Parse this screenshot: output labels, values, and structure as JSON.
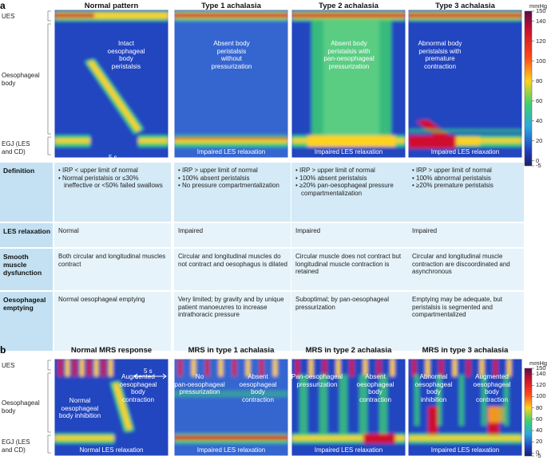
{
  "panel_a": {
    "label": "a",
    "columns": [
      {
        "title": "Normal pattern",
        "annotation": [
          "Intact",
          "oesophageal",
          "body",
          "peristalsis"
        ]
      },
      {
        "title": "Type 1 achalasia",
        "annotation": [
          "Absent body",
          "peristalsis",
          "without",
          "pressurization"
        ],
        "bottom": "Impaired LES relaxation"
      },
      {
        "title": "Type 2 achalasia",
        "annotation": [
          "Absent body",
          "peristalsis  with",
          "pan-oesophageal",
          "pressurization"
        ],
        "bottom": "Impaired LES relaxation"
      },
      {
        "title": "Type 3 achalasia",
        "annotation": [
          "Abnormal body",
          "peristalsis with",
          "premature",
          "contraction"
        ],
        "bottom": "Impaired LES relaxation"
      }
    ],
    "scale_bar": "5 s",
    "regions": {
      "ues": "UES",
      "body": [
        "Oesophageal",
        "body"
      ],
      "egj": [
        "EGJ (LES",
        "and CD)"
      ]
    },
    "colorbar": {
      "unit": "mmHg",
      "ticks": [
        150,
        140,
        120,
        100,
        80,
        60,
        40,
        20,
        0,
        -5
      ]
    }
  },
  "table": {
    "rows": [
      {
        "header": "Definition",
        "cells": [
          [
            "IRP < upper limit of normal",
            "Normal peristalsis or ≤30% ineffective or <50% failed swallows"
          ],
          [
            "IRP > upper limit of normal",
            "100% absent peristalsis",
            "No pressure compartmentalization"
          ],
          [
            "IRP > upper limit of normal",
            "100% absent peristalsis",
            "≥20% pan-oesophageal pressure compartmentalization"
          ],
          [
            "IRP > upper limit of normal",
            "100% abnormal peristalsis",
            "≥20% premature peristalsis"
          ]
        ]
      },
      {
        "header": "LES relaxation",
        "cells": [
          "Normal",
          "Impaired",
          "Impaired",
          "Impaired"
        ]
      },
      {
        "header": "Smooth muscle dysfunction",
        "cells": [
          "Both circular and longitudinal muscles contract",
          "Circular and longitudinal muscles do not contract and oesophagus is dilated",
          "Circular muscle does not contract but longitudinal muscle contraction is retained",
          "Circular and longitudinal muscle contraction are discoordinated and asynchronous"
        ]
      },
      {
        "header": "Oesophageal emptying",
        "cells": [
          "Normal oesophageal emptying",
          "Very limited; by gravity and by unique patient manoeuvres to increase intrathoracic pressure",
          "Suboptimal; by pan-oesophageal pressurization",
          "Emptying may be adequate, but peristalsis is segmented and compartmentalized"
        ]
      }
    ]
  },
  "panel_b": {
    "label": "b",
    "columns": [
      {
        "title": "Normal MRS response",
        "annotations": [
          [
            "Normal",
            "oesophageal",
            "body inhibition"
          ],
          [
            "Augmented",
            "oesophageal",
            "body",
            "contraction"
          ]
        ],
        "bottom": "Normal LES relaxation"
      },
      {
        "title": "MRS in type 1 achalasia",
        "annotations": [
          [
            "No",
            "pan-oesophageal",
            "pressurization"
          ],
          [
            "Absent",
            "oesophageal",
            "body",
            "contraction"
          ]
        ],
        "bottom": "Impaired LES relaxation"
      },
      {
        "title": "MRS in type 2 achalasia",
        "annotations": [
          [
            "Pan-oesophageal",
            "pressurization"
          ],
          [
            "Absent",
            "oesophageal",
            "body",
            "contraction"
          ]
        ],
        "bottom": "Impaired LES relaxation"
      },
      {
        "title": "MRS in type 3 achalasia",
        "annotations": [
          [
            "Abnormal",
            "oesophageal",
            "body",
            "inhibition"
          ],
          [
            "Augmented",
            "oesophageal",
            "body",
            "contraction"
          ]
        ],
        "bottom": "Impaired LES relaxation"
      }
    ],
    "scale_bar": "5 s",
    "regions": {
      "ues": "UES",
      "body": [
        "Oesophageal",
        "body"
      ],
      "egj": [
        "EGJ (LES",
        "and CD)"
      ]
    },
    "colorbar": {
      "unit": "mmHg",
      "ticks": [
        150,
        140,
        120,
        100,
        80,
        60,
        40,
        20,
        0,
        -5
      ]
    }
  }
}
